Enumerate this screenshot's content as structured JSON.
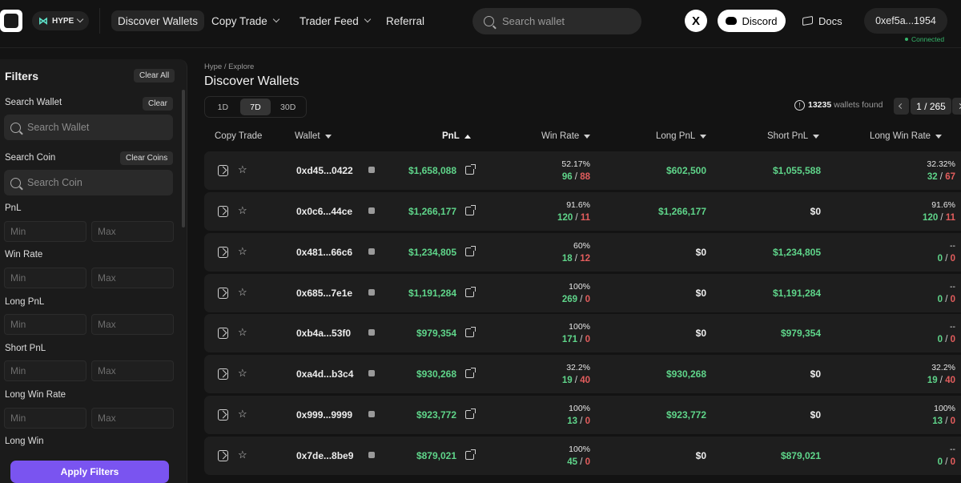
{
  "header": {
    "chain_label": "HYPE",
    "nav": [
      {
        "label": "Discover Wallets"
      },
      {
        "label": "Copy Trade"
      },
      {
        "label": "Trader Feed"
      },
      {
        "label": "Referral"
      }
    ],
    "search_placeholder": "Search wallet",
    "x_label": "X",
    "discord_label": "Discord",
    "docs_label": "Docs",
    "wallet_address": "0xef5a...1954",
    "wallet_status": "Connected"
  },
  "filters": {
    "title": "Filters",
    "clear_all": "Clear All",
    "search_wallet_label": "Search Wallet",
    "clear_label": "Clear",
    "search_wallet_placeholder": "Search Wallet",
    "search_coin_label": "Search Coin",
    "clear_coins": "Clear Coins",
    "search_coin_placeholder": "Search Coin",
    "min_placeholder": "Min",
    "max_placeholder": "Max",
    "ranges": [
      "PnL",
      "Win Rate",
      "Long PnL",
      "Short PnL",
      "Long Win Rate",
      "Long Win"
    ],
    "apply": "Apply Filters"
  },
  "main": {
    "breadcrumb": "Hype / Explore",
    "title": "Discover Wallets",
    "periods": [
      "1D",
      "7D",
      "30D"
    ],
    "active_period": "7D",
    "found_count": "13235",
    "found_suffix": " wallets found",
    "page_indicator": "1 / 265",
    "columns": {
      "copy_trade": "Copy Trade",
      "wallet": "Wallet",
      "pnl": "PnL",
      "win_rate": "Win Rate",
      "long_pnl": "Long PnL",
      "short_pnl": "Short PnL",
      "long_win_rate": "Long Win Rate"
    }
  },
  "rows": [
    {
      "wallet": "0xd45...0422",
      "pnl": "$1,658,088",
      "wr": "52.17%",
      "wins": "96",
      "losses": "88",
      "long_pnl": "$602,500",
      "short_pnl": "$1,055,588",
      "lwr": "32.32%",
      "lwins": "32",
      "llosses": "67"
    },
    {
      "wallet": "0x0c6...44ce",
      "pnl": "$1,266,177",
      "wr": "91.6%",
      "wins": "120",
      "losses": "11",
      "long_pnl": "$1,266,177",
      "short_pnl": "$0",
      "lwr": "91.6%",
      "lwins": "120",
      "llosses": "11"
    },
    {
      "wallet": "0x481...66c6",
      "pnl": "$1,234,805",
      "wr": "60%",
      "wins": "18",
      "losses": "12",
      "long_pnl": "$0",
      "short_pnl": "$1,234,805",
      "lwr": "--",
      "lwins": "0",
      "llosses": "0"
    },
    {
      "wallet": "0x685...7e1e",
      "pnl": "$1,191,284",
      "wr": "100%",
      "wins": "269",
      "losses": "0",
      "long_pnl": "$0",
      "short_pnl": "$1,191,284",
      "lwr": "--",
      "lwins": "0",
      "llosses": "0"
    },
    {
      "wallet": "0xb4a...53f0",
      "pnl": "$979,354",
      "wr": "100%",
      "wins": "171",
      "losses": "0",
      "long_pnl": "$0",
      "short_pnl": "$979,354",
      "lwr": "--",
      "lwins": "0",
      "llosses": "0"
    },
    {
      "wallet": "0xa4d...b3c4",
      "pnl": "$930,268",
      "wr": "32.2%",
      "wins": "19",
      "losses": "40",
      "long_pnl": "$930,268",
      "short_pnl": "$0",
      "lwr": "32.2%",
      "lwins": "19",
      "llosses": "40"
    },
    {
      "wallet": "0x999...9999",
      "pnl": "$923,772",
      "wr": "100%",
      "wins": "13",
      "losses": "0",
      "long_pnl": "$923,772",
      "short_pnl": "$0",
      "lwr": "100%",
      "lwins": "13",
      "llosses": "0"
    },
    {
      "wallet": "0x7de...8be9",
      "pnl": "$879,021",
      "wr": "100%",
      "wins": "45",
      "losses": "0",
      "long_pnl": "$0",
      "short_pnl": "$879,021",
      "lwr": "--",
      "lwins": "0",
      "llosses": "0"
    }
  ],
  "colors": {
    "accent": "#7a54f0",
    "positive": "#5fd58a",
    "negative": "#e35d5d",
    "connected": "#36b56b"
  }
}
